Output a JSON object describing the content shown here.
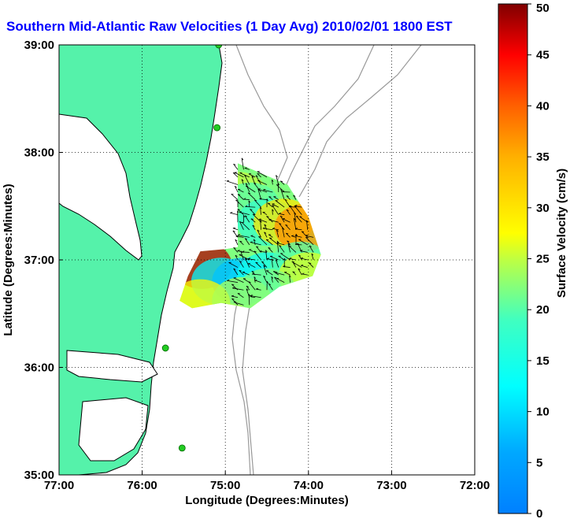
{
  "chart_data": {
    "type": "heatmap",
    "title": "Southern Mid-Atlantic Raw Velocities (1 Day Avg) 2010/02/01 1800 EST",
    "xlabel": "Longitude (Degrees:Minutes)",
    "ylabel": "Latitude (Degrees:Minutes)",
    "colorbar_label": "Surface Velocity (cm/s)",
    "x_ticks": [
      {
        "value": -77,
        "label": "77:00"
      },
      {
        "value": -76,
        "label": "76:00"
      },
      {
        "value": -75,
        "label": "75:00"
      },
      {
        "value": -74,
        "label": "74:00"
      },
      {
        "value": -73,
        "label": "73:00"
      },
      {
        "value": -72,
        "label": "72:00"
      }
    ],
    "y_ticks": [
      {
        "value": 35,
        "label": "35:00"
      },
      {
        "value": 36,
        "label": "36:00"
      },
      {
        "value": 37,
        "label": "37:00"
      },
      {
        "value": 38,
        "label": "38:00"
      },
      {
        "value": 39,
        "label": "39:00"
      }
    ],
    "colorbar_ticks": [
      0,
      5,
      10,
      15,
      20,
      25,
      30,
      35,
      40,
      45,
      50
    ],
    "xlim": [
      -77,
      -72
    ],
    "ylim": [
      35,
      39
    ],
    "clim": [
      0,
      50
    ],
    "colormap": "jet",
    "grid": true,
    "coverage_region": [
      [
        -74.85,
        37.9
      ],
      [
        -74.25,
        37.7
      ],
      [
        -74.0,
        37.4
      ],
      [
        -73.85,
        37.05
      ],
      [
        -73.95,
        36.85
      ],
      [
        -74.35,
        36.75
      ],
      [
        -74.7,
        36.55
      ],
      [
        -75.05,
        36.6
      ],
      [
        -75.4,
        36.55
      ],
      [
        -75.55,
        36.62
      ],
      [
        -75.45,
        36.85
      ],
      [
        -75.3,
        37.08
      ],
      [
        -75.0,
        37.1
      ],
      [
        -74.85,
        37.12
      ]
    ],
    "velocity_field_samples": [
      {
        "lon": -74.85,
        "lat": 37.6,
        "speed": 25
      },
      {
        "lon": -74.7,
        "lat": 37.5,
        "speed": 20
      },
      {
        "lon": -74.5,
        "lat": 37.35,
        "speed": 18
      },
      {
        "lon": -74.3,
        "lat": 37.35,
        "speed": 30
      },
      {
        "lon": -74.05,
        "lat": 37.3,
        "speed": 37
      },
      {
        "lon": -75.28,
        "lat": 36.95,
        "speed": 48
      },
      {
        "lon": -75.05,
        "lat": 36.8,
        "speed": 12
      },
      {
        "lon": -74.8,
        "lat": 36.8,
        "speed": 8
      },
      {
        "lon": -74.5,
        "lat": 36.85,
        "speed": 14
      },
      {
        "lon": -74.1,
        "lat": 36.95,
        "speed": 20
      },
      {
        "lon": -74.0,
        "lat": 36.85,
        "speed": 26
      },
      {
        "lon": -75.3,
        "lat": 36.6,
        "speed": 28
      },
      {
        "lon": -74.8,
        "lat": 36.62,
        "speed": 24
      },
      {
        "lon": -74.5,
        "lat": 36.7,
        "speed": 22
      }
    ]
  },
  "colors": {
    "land": "#55f2aa",
    "water": "#ffffff",
    "coastline": "#000000",
    "bathymetry": "#999999",
    "title": "#0000ff",
    "station": "#22cc22"
  },
  "stations": [
    {
      "lon": -75.08,
      "lat": 39.0
    },
    {
      "lon": -75.1,
      "lat": 38.23
    },
    {
      "lon": -75.72,
      "lat": 36.18
    },
    {
      "lon": -75.52,
      "lat": 35.25
    }
  ]
}
